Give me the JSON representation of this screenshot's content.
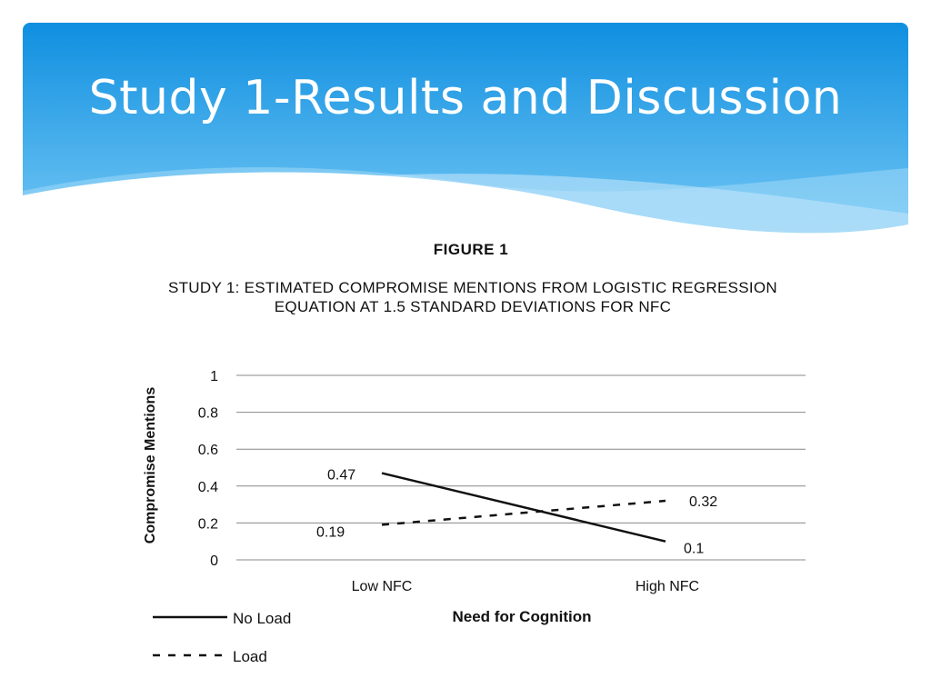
{
  "slide": {
    "title": "Study 1-Results and Discussion"
  },
  "figure": {
    "label": "FIGURE 1",
    "caption": "STUDY 1: ESTIMATED COMPROMISE MENTIONS FROM LOGISTIC REGRESSION EQUATION AT 1.5 STANDARD DEVIATIONS FOR NFC"
  },
  "colors": {
    "header_top": "#0f8fe0",
    "header_bottom": "#7cccf6",
    "line": "#111111",
    "grid": "#888888"
  },
  "chart_data": {
    "type": "line",
    "categories": [
      "Low NFC",
      "High NFC"
    ],
    "series": [
      {
        "name": "No Load",
        "style": "solid",
        "values": [
          0.47,
          0.1
        ],
        "labels": [
          "0.47",
          "0.1"
        ]
      },
      {
        "name": "Load",
        "style": "dashed",
        "values": [
          0.19,
          0.32
        ],
        "labels": [
          "0.19",
          "0.32"
        ]
      }
    ],
    "xlabel": "Need for Cognition",
    "ylabel": "Compromise Mentions",
    "ylim": [
      0,
      1
    ],
    "yticks": [
      0,
      0.2,
      0.4,
      0.6,
      0.8,
      1
    ],
    "ytick_labels": [
      "0",
      "0.2",
      "0.4",
      "0.6",
      "0.8",
      "1"
    ],
    "grid": true,
    "legend_position": "bottom-left"
  }
}
